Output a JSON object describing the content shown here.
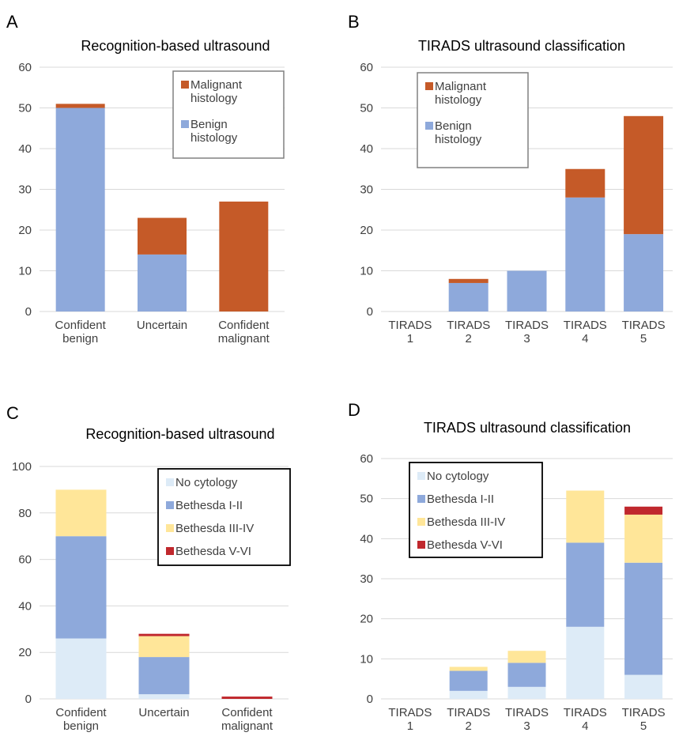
{
  "colors": {
    "malignant": "#C55A28",
    "benign": "#8EA9DB",
    "no_cytology": "#DDEBF7",
    "bethesda_1_2": "#8EA9DB",
    "bethesda_3_4": "#FFE699",
    "bethesda_5_6": "#C0282D",
    "grid": "#D9D9D9"
  },
  "chart_data": [
    {
      "panel": "A",
      "type": "bar",
      "stacked": true,
      "title": "Recognition-based ultrasound",
      "categories": [
        [
          "Confident",
          "benign"
        ],
        [
          "Uncertain"
        ],
        [
          "Confident",
          "malignant"
        ]
      ],
      "series": [
        {
          "name": "Benign histology",
          "values": [
            50,
            14,
            0
          ]
        },
        {
          "name": "Malignant histology",
          "values": [
            1,
            9,
            27
          ]
        }
      ],
      "ylim": [
        0,
        60
      ],
      "yticks": [
        0,
        10,
        20,
        30,
        40,
        50,
        60
      ],
      "grid": true,
      "legend": "top-right",
      "legend_entries": [
        {
          "lines": [
            "Malignant",
            "histology"
          ],
          "color_key": "malignant"
        },
        {
          "lines": [
            "Benign",
            "histology"
          ],
          "color_key": "benign"
        }
      ]
    },
    {
      "panel": "B",
      "type": "bar",
      "stacked": true,
      "title": "TIRADS ultrasound classification",
      "categories": [
        [
          "TIRADS",
          "1"
        ],
        [
          "TIRADS",
          "2"
        ],
        [
          "TIRADS",
          "3"
        ],
        [
          "TIRADS",
          "4"
        ],
        [
          "TIRADS",
          "5"
        ]
      ],
      "series": [
        {
          "name": "Benign histology",
          "values": [
            0,
            7,
            10,
            28,
            19
          ]
        },
        {
          "name": "Malignant histology",
          "values": [
            0,
            1,
            0,
            7,
            29
          ]
        }
      ],
      "ylim": [
        0,
        60
      ],
      "yticks": [
        0,
        10,
        20,
        30,
        40,
        50,
        60
      ],
      "grid": true,
      "legend": "top-left",
      "legend_entries": [
        {
          "lines": [
            "Malignant",
            "histology"
          ],
          "color_key": "malignant"
        },
        {
          "lines": [
            "Benign",
            "histology"
          ],
          "color_key": "benign"
        }
      ]
    },
    {
      "panel": "C",
      "type": "bar",
      "stacked": true,
      "title": "Recognition-based ultrasound",
      "categories": [
        [
          "Confident",
          "benign"
        ],
        [
          "Uncertain"
        ],
        [
          "Confident",
          "malignant"
        ]
      ],
      "series": [
        {
          "name": "No cytology",
          "values": [
            26,
            2,
            0
          ]
        },
        {
          "name": "Bethesda I-II",
          "values": [
            44,
            16,
            0
          ]
        },
        {
          "name": "Bethesda III-IV",
          "values": [
            20,
            9,
            0
          ]
        },
        {
          "name": "Bethesda V-VI",
          "values": [
            0,
            1,
            1
          ]
        }
      ],
      "ylim": [
        0,
        100
      ],
      "yticks": [
        0,
        20,
        40,
        60,
        80,
        100
      ],
      "grid": true,
      "legend": "top-right",
      "legend_entries": [
        {
          "lines": [
            "No cytology"
          ],
          "color_key": "no_cytology"
        },
        {
          "lines": [
            "Bethesda I-II"
          ],
          "color_key": "bethesda_1_2"
        },
        {
          "lines": [
            "Bethesda III-IV"
          ],
          "color_key": "bethesda_3_4"
        },
        {
          "lines": [
            "Bethesda V-VI"
          ],
          "color_key": "bethesda_5_6"
        }
      ]
    },
    {
      "panel": "D",
      "type": "bar",
      "stacked": true,
      "title": "TIRADS ultrasound classification",
      "categories": [
        [
          "TIRADS",
          "1"
        ],
        [
          "TIRADS",
          "2"
        ],
        [
          "TIRADS",
          "3"
        ],
        [
          "TIRADS",
          "4"
        ],
        [
          "TIRADS",
          "5"
        ]
      ],
      "series": [
        {
          "name": "No cytology",
          "values": [
            0,
            2,
            3,
            18,
            6
          ]
        },
        {
          "name": "Bethesda I-II",
          "values": [
            0,
            5,
            6,
            21,
            28
          ]
        },
        {
          "name": "Bethesda III-IV",
          "values": [
            0,
            1,
            3,
            13,
            12
          ]
        },
        {
          "name": "Bethesda V-VI",
          "values": [
            0,
            0,
            0,
            0,
            2
          ]
        }
      ],
      "ylim": [
        0,
        60
      ],
      "yticks": [
        0,
        10,
        20,
        30,
        40,
        50,
        60
      ],
      "grid": true,
      "legend": "top-left",
      "legend_entries": [
        {
          "lines": [
            "No cytology"
          ],
          "color_key": "no_cytology"
        },
        {
          "lines": [
            "Bethesda I-II"
          ],
          "color_key": "bethesda_1_2"
        },
        {
          "lines": [
            "Bethesda III-IV"
          ],
          "color_key": "bethesda_3_4"
        },
        {
          "lines": [
            "Bethesda V-VI"
          ],
          "color_key": "bethesda_5_6"
        }
      ]
    }
  ]
}
